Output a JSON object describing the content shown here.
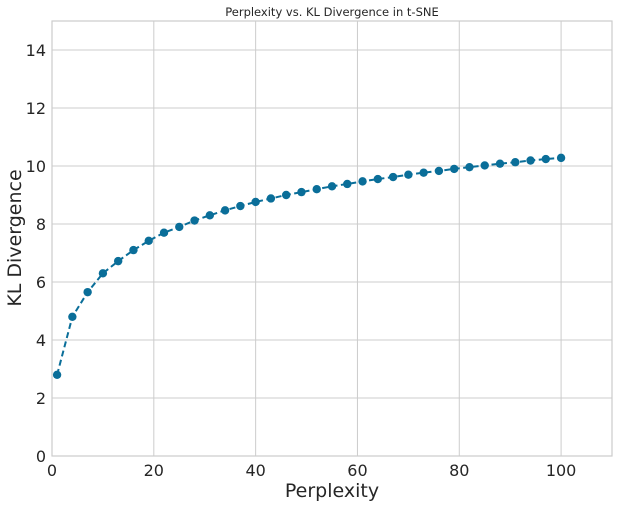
{
  "chart_data": {
    "type": "line",
    "title": "Perplexity vs. KL Divergence in t-SNE",
    "xlabel": "Perplexity",
    "ylabel": "KL Divergence",
    "xlim": [
      0,
      110
    ],
    "ylim": [
      0,
      15
    ],
    "xticks": [
      0,
      20,
      40,
      60,
      80,
      100
    ],
    "yticks": [
      0,
      2,
      4,
      6,
      8,
      10,
      12,
      14
    ],
    "grid": true,
    "line_style": "dashed",
    "marker": "circle",
    "color": "#0a6e99",
    "series": [
      {
        "x": [
          1,
          4,
          7,
          10,
          13,
          16,
          19,
          22,
          25,
          28,
          31,
          34,
          37,
          40,
          43,
          46,
          49,
          52,
          55,
          58,
          61,
          64,
          67,
          70,
          73,
          76,
          79,
          82,
          85,
          88,
          91,
          94,
          97,
          100
        ],
        "y": [
          2.8,
          4.8,
          5.65,
          6.3,
          6.72,
          7.1,
          7.42,
          7.7,
          7.9,
          8.12,
          8.3,
          8.47,
          8.62,
          8.76,
          8.88,
          9.0,
          9.1,
          9.2,
          9.3,
          9.38,
          9.47,
          9.55,
          9.62,
          9.7,
          9.77,
          9.83,
          9.9,
          9.96,
          10.02,
          10.08,
          10.13,
          10.19,
          10.24,
          10.28
        ]
      }
    ]
  }
}
